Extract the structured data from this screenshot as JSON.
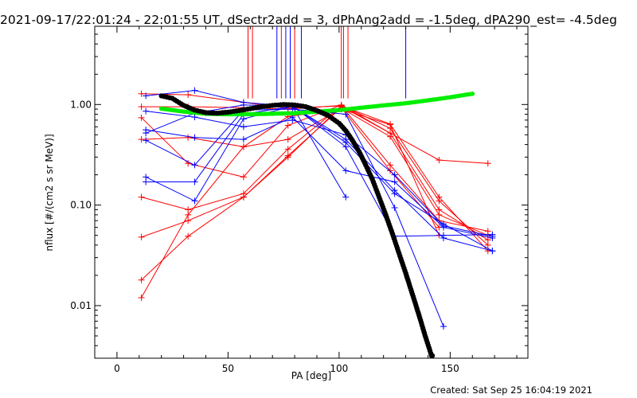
{
  "header": {
    "title": "2021-09-17/22:01:24 - 22:01:55 UT, dSectr2add = 3, dPhAng2add = -1.5deg, dPA290_est= -4.5deg"
  },
  "footer": {
    "created": "Created: Sat Sep 25 16:04:19 2021"
  },
  "chart_data": {
    "type": "line",
    "title": "2021-09-17/22:01:24 - 22:01:55 UT, dSectr2add = 3, dPhAng2add = -1.5deg, dPA290_est= -4.5deg",
    "xlabel": "PA [deg]",
    "ylabel": "nflux [#/(cm2 s sr MeV)]",
    "xlim": [
      -10,
      185
    ],
    "ylim": [
      0.003,
      6
    ],
    "yscale": "log",
    "xticks": [
      0,
      50,
      100,
      150
    ],
    "xtick_labels": [
      "0",
      "50",
      "100",
      "150"
    ],
    "yticks": [
      0.01,
      0.1,
      1.0
    ],
    "ytick_labels": [
      "0.01",
      "0.10",
      "1.00"
    ],
    "grid": false,
    "colors": {
      "red": "#ff0000",
      "blue": "#0000ff",
      "black": "#000000",
      "green": "#00ee00"
    },
    "vertical_markers": {
      "red_x": [
        59,
        61,
        74,
        80,
        101,
        102,
        104
      ],
      "blue_x": [
        72,
        76,
        78,
        83,
        130
      ],
      "top": 6,
      "bottom_red": 1.15,
      "bottom_blue": 1.15
    },
    "red_series": [
      [
        [
          11,
          1.28
        ],
        [
          32,
          1.25
        ],
        [
          57,
          1.05
        ],
        [
          77,
          0.92
        ],
        [
          101,
          0.97
        ],
        [
          123,
          0.64
        ],
        [
          145,
          0.12
        ],
        [
          167,
          0.035
        ]
      ],
      [
        [
          11,
          0.95
        ],
        [
          32,
          0.95
        ],
        [
          57,
          0.93
        ],
        [
          77,
          0.9
        ],
        [
          101,
          0.98
        ],
        [
          123,
          0.58
        ],
        [
          145,
          0.11
        ],
        [
          167,
          0.04
        ]
      ],
      [
        [
          11,
          0.74
        ],
        [
          32,
          0.26
        ],
        [
          57,
          0.19
        ],
        [
          77,
          0.62
        ],
        [
          101,
          0.99
        ],
        [
          123,
          0.52
        ],
        [
          145,
          0.09
        ],
        [
          167,
          0.045
        ]
      ],
      [
        [
          11,
          0.45
        ],
        [
          32,
          0.47
        ],
        [
          57,
          0.38
        ],
        [
          77,
          0.45
        ],
        [
          101,
          0.92
        ],
        [
          123,
          0.48
        ],
        [
          145,
          0.08
        ],
        [
          167,
          0.05
        ]
      ],
      [
        [
          11,
          0.12
        ],
        [
          32,
          0.09
        ],
        [
          57,
          0.13
        ],
        [
          77,
          0.36
        ],
        [
          101,
          0.97
        ],
        [
          123,
          0.25
        ],
        [
          145,
          0.07
        ],
        [
          167,
          0.055
        ]
      ],
      [
        [
          11,
          0.048
        ],
        [
          32,
          0.07
        ],
        [
          57,
          0.12
        ],
        [
          77,
          0.31
        ],
        [
          101,
          0.93
        ],
        [
          123,
          0.22
        ],
        [
          145,
          0.06
        ]
      ],
      [
        [
          11,
          0.018
        ],
        [
          32,
          0.049
        ],
        [
          57,
          0.12
        ],
        [
          77,
          0.3
        ],
        [
          101,
          0.96
        ],
        [
          145,
          0.28
        ],
        [
          167,
          0.26
        ]
      ],
      [
        [
          11,
          0.012
        ],
        [
          32,
          0.08
        ],
        [
          57,
          0.38
        ],
        [
          77,
          0.76
        ],
        [
          101,
          0.9
        ],
        [
          123,
          0.63
        ],
        [
          145,
          0.05
        ]
      ]
    ],
    "blue_series": [
      [
        [
          13,
          0.86
        ],
        [
          35,
          0.75
        ],
        [
          57,
          0.6
        ],
        [
          79,
          0.7
        ],
        [
          103,
          0.5
        ],
        [
          125,
          0.2
        ],
        [
          147,
          0.062
        ],
        [
          169,
          0.049
        ]
      ],
      [
        [
          13,
          0.56
        ],
        [
          35,
          0.47
        ],
        [
          57,
          0.45
        ],
        [
          79,
          0.75
        ],
        [
          103,
          0.22
        ],
        [
          125,
          0.17
        ],
        [
          147,
          0.06
        ],
        [
          169,
          0.047
        ]
      ],
      [
        [
          13,
          1.22
        ],
        [
          35,
          1.38
        ],
        [
          57,
          1.05
        ],
        [
          79,
          0.96
        ],
        [
          103,
          0.12
        ]
      ],
      [
        [
          13,
          0.19
        ],
        [
          35,
          0.11
        ],
        [
          57,
          0.72
        ],
        [
          79,
          0.96
        ],
        [
          103,
          0.42
        ],
        [
          125,
          0.13
        ],
        [
          147,
          0.065
        ],
        [
          169,
          0.035
        ]
      ],
      [
        [
          13,
          0.17
        ],
        [
          35,
          0.17
        ],
        [
          57,
          0.8
        ],
        [
          79,
          0.96
        ],
        [
          103,
          0.45
        ],
        [
          125,
          0.14
        ],
        [
          147,
          0.047
        ],
        [
          169,
          0.035
        ]
      ],
      [
        [
          13,
          0.44
        ],
        [
          35,
          0.25
        ],
        [
          57,
          0.88
        ],
        [
          79,
          0.9
        ],
        [
          103,
          0.8
        ],
        [
          125,
          0.094
        ],
        [
          147,
          0.0062
        ]
      ],
      [
        [
          13,
          0.52
        ],
        [
          35,
          0.82
        ],
        [
          57,
          0.99
        ],
        [
          79,
          0.97
        ],
        [
          103,
          0.38
        ],
        [
          125,
          0.049
        ],
        [
          147,
          0.05
        ],
        [
          169,
          0.051
        ]
      ]
    ],
    "black_curve": [
      [
        20,
        1.22
      ],
      [
        25,
        1.15
      ],
      [
        30,
        0.98
      ],
      [
        35,
        0.88
      ],
      [
        40,
        0.83
      ],
      [
        45,
        0.82
      ],
      [
        50,
        0.84
      ],
      [
        55,
        0.87
      ],
      [
        60,
        0.91
      ],
      [
        65,
        0.95
      ],
      [
        70,
        0.98
      ],
      [
        75,
        1.0
      ],
      [
        80,
        0.99
      ],
      [
        85,
        0.95
      ],
      [
        90,
        0.87
      ],
      [
        95,
        0.78
      ],
      [
        100,
        0.65
      ],
      [
        103,
        0.55
      ],
      [
        106,
        0.44
      ],
      [
        109,
        0.34
      ],
      [
        112,
        0.25
      ],
      [
        115,
        0.18
      ],
      [
        118,
        0.12
      ],
      [
        121,
        0.08
      ],
      [
        124,
        0.052
      ],
      [
        127,
        0.033
      ],
      [
        130,
        0.021
      ],
      [
        133,
        0.013
      ],
      [
        136,
        0.008
      ],
      [
        139,
        0.0048
      ],
      [
        142,
        0.003
      ]
    ],
    "green_curve": [
      [
        20,
        0.91
      ],
      [
        30,
        0.85
      ],
      [
        40,
        0.81
      ],
      [
        50,
        0.8
      ],
      [
        60,
        0.8
      ],
      [
        70,
        0.81
      ],
      [
        80,
        0.82
      ],
      [
        90,
        0.85
      ],
      [
        100,
        0.88
      ],
      [
        110,
        0.93
      ],
      [
        120,
        0.98
      ],
      [
        130,
        1.03
      ],
      [
        140,
        1.1
      ],
      [
        150,
        1.18
      ],
      [
        160,
        1.28
      ]
    ]
  }
}
